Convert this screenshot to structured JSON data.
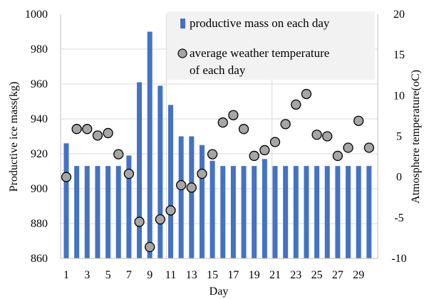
{
  "chart_data": {
    "type": "bar",
    "title": "",
    "xlabel": "Day",
    "ylabel_left": "Productive ice mass(kg)",
    "ylabel_right": "Atmosphere temperature(oC)",
    "x": [
      1,
      2,
      3,
      4,
      5,
      6,
      7,
      8,
      9,
      10,
      11,
      12,
      13,
      14,
      15,
      16,
      17,
      18,
      19,
      20,
      21,
      22,
      23,
      24,
      25,
      26,
      27,
      28,
      29,
      30
    ],
    "x_tick_labels": [
      "1",
      "3",
      "5",
      "7",
      "9",
      "11",
      "13",
      "15",
      "17",
      "19",
      "21",
      "23",
      "25",
      "27",
      "29"
    ],
    "ylim_left": [
      860,
      1000
    ],
    "yticks_left": [
      "860",
      "880",
      "900",
      "920",
      "940",
      "960",
      "980",
      "1000"
    ],
    "ylim_right": [
      -10,
      20
    ],
    "yticks_right": [
      "-10",
      "-5",
      "0",
      "5",
      "10",
      "15",
      "20"
    ],
    "grid": true,
    "legend_position": "top-right",
    "series": [
      {
        "name": "productive mass on each day",
        "type": "bar",
        "axis": "left",
        "color": "#4472C4",
        "values": [
          926,
          913,
          913,
          913,
          913,
          913,
          919,
          961,
          990,
          959,
          948,
          930,
          930,
          925,
          916,
          913,
          913,
          913,
          913,
          917,
          913,
          913,
          913,
          913,
          913,
          913,
          913,
          913,
          913,
          913
        ]
      },
      {
        "name": "average weather temperature of each day",
        "legend_lines": [
          "average weather temperature",
          "of each day"
        ],
        "type": "scatter",
        "axis": "right",
        "color": "#A6A6A6",
        "values": [
          0.0,
          5.9,
          5.9,
          5.1,
          5.4,
          2.8,
          0.4,
          -5.5,
          -8.6,
          -5.2,
          -4.1,
          -1.0,
          -1.3,
          0.4,
          2.8,
          6.7,
          7.6,
          5.9,
          2.6,
          3.3,
          4.3,
          6.5,
          8.9,
          10.2,
          5.2,
          5.0,
          2.6,
          3.6,
          6.9,
          3.6
        ]
      }
    ]
  }
}
